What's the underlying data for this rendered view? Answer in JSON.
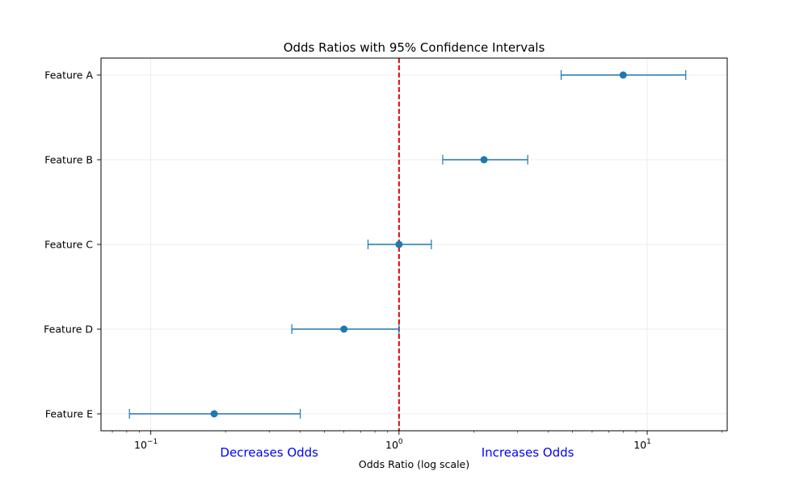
{
  "chart_data": {
    "type": "scatter",
    "title": "Odds Ratios with 95% Confidence Intervals",
    "xlabel": "Odds Ratio (log scale)",
    "ylabel": "",
    "x_scale": "log",
    "xlim": [
      0.063,
      21
    ],
    "grid": true,
    "reference_line": {
      "x": 1,
      "color": "#e00000",
      "style": "dashed"
    },
    "x_ticks": [
      {
        "value": 0.1,
        "base": "10",
        "exp": "−1"
      },
      {
        "value": 1,
        "base": "10",
        "exp": "0"
      },
      {
        "value": 10,
        "base": "10",
        "exp": "1"
      }
    ],
    "categories": [
      "Feature A",
      "Feature B",
      "Feature C",
      "Feature D",
      "Feature E"
    ],
    "points": [
      {
        "label": "Feature A",
        "or": 8.0,
        "ci_low": 4.5,
        "ci_high": 14.3
      },
      {
        "label": "Feature B",
        "or": 2.2,
        "ci_low": 1.5,
        "ci_high": 3.3
      },
      {
        "label": "Feature C",
        "or": 1.0,
        "ci_low": 0.75,
        "ci_high": 1.35
      },
      {
        "label": "Feature D",
        "or": 0.6,
        "ci_low": 0.37,
        "ci_high": 1.0
      },
      {
        "label": "Feature E",
        "or": 0.18,
        "ci_low": 0.082,
        "ci_high": 0.4
      }
    ],
    "point_color": "#1f77b4",
    "annotations": [
      {
        "text": "Decreases Odds",
        "x": 0.3
      },
      {
        "text": "Increases Odds",
        "x": 3.3
      }
    ]
  }
}
